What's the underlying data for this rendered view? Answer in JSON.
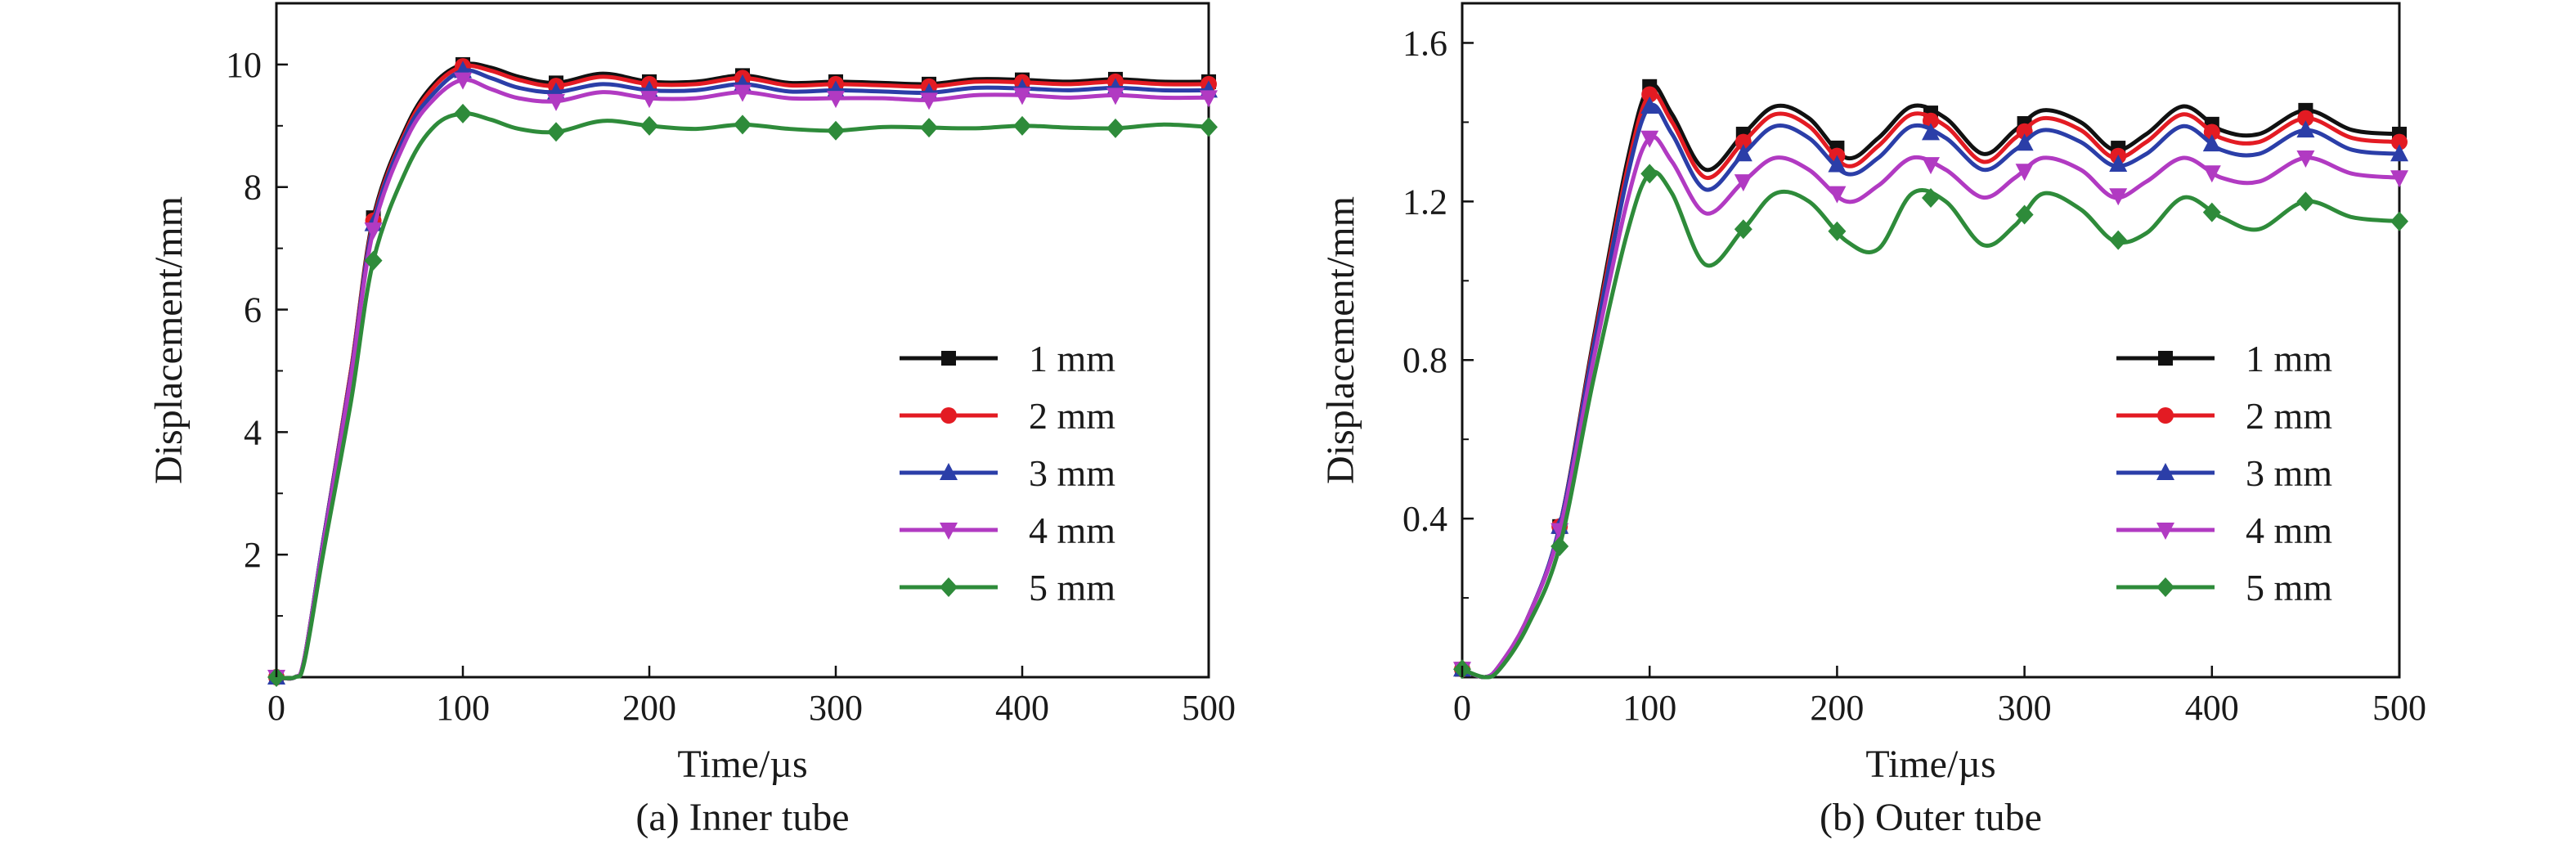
{
  "chart_data": [
    {
      "type": "line",
      "caption": "(a) Inner tube",
      "xlabel": "Time/µs",
      "ylabel": "Displacement/mm",
      "xlim": [
        0,
        500
      ],
      "ylim": [
        0,
        11
      ],
      "xticks": [
        0,
        100,
        200,
        300,
        400,
        500
      ],
      "xtick_labels": [
        "0",
        "100",
        "200",
        "300",
        "400",
        "500"
      ],
      "yticks": [
        2,
        4,
        6,
        8,
        10
      ],
      "ytick_labels": [
        "2",
        "4",
        "6",
        "8",
        "10"
      ],
      "grid": false,
      "legend_position": "lower-right",
      "series": [
        {
          "name": "1 mm",
          "color": "#111111",
          "marker": "square",
          "x": [
            0,
            10,
            15,
            25,
            40,
            52,
            70,
            85,
            100,
            115,
            130,
            150,
            175,
            200,
            225,
            250,
            275,
            300,
            325,
            350,
            375,
            400,
            425,
            450,
            475,
            500
          ],
          "y": [
            0,
            0,
            0.3,
            2.2,
            5.0,
            7.5,
            9.0,
            9.7,
            10.0,
            9.95,
            9.8,
            9.7,
            9.85,
            9.72,
            9.72,
            9.82,
            9.7,
            9.72,
            9.7,
            9.68,
            9.76,
            9.75,
            9.72,
            9.76,
            9.72,
            9.72
          ],
          "markers_x": [
            0,
            52,
            100,
            150,
            200,
            250,
            300,
            350,
            400,
            450,
            500
          ]
        },
        {
          "name": "2 mm",
          "color": "#e31b23",
          "marker": "circle",
          "x": [
            0,
            10,
            15,
            25,
            40,
            52,
            70,
            85,
            100,
            115,
            130,
            150,
            175,
            200,
            225,
            250,
            275,
            300,
            325,
            350,
            375,
            400,
            425,
            450,
            475,
            500
          ],
          "y": [
            0,
            0,
            0.3,
            2.2,
            5.0,
            7.45,
            8.95,
            9.65,
            9.97,
            9.9,
            9.75,
            9.65,
            9.8,
            9.68,
            9.68,
            9.78,
            9.66,
            9.68,
            9.66,
            9.64,
            9.72,
            9.71,
            9.68,
            9.72,
            9.68,
            9.68
          ],
          "markers_x": [
            0,
            52,
            100,
            150,
            200,
            250,
            300,
            350,
            400,
            450,
            500
          ]
        },
        {
          "name": "3 mm",
          "color": "#2b3ea8",
          "marker": "triangle-up",
          "x": [
            0,
            10,
            15,
            25,
            40,
            52,
            70,
            85,
            100,
            115,
            130,
            150,
            175,
            200,
            225,
            250,
            275,
            300,
            325,
            350,
            375,
            400,
            425,
            450,
            475,
            500
          ],
          "y": [
            0,
            0,
            0.3,
            2.2,
            4.95,
            7.4,
            8.9,
            9.55,
            9.9,
            9.78,
            9.62,
            9.55,
            9.68,
            9.58,
            9.58,
            9.68,
            9.56,
            9.58,
            9.56,
            9.54,
            9.62,
            9.61,
            9.58,
            9.62,
            9.58,
            9.58
          ],
          "markers_x": [
            0,
            52,
            100,
            150,
            200,
            250,
            300,
            350,
            400,
            450,
            500
          ]
        },
        {
          "name": "4 mm",
          "color": "#b13ac2",
          "marker": "triangle-down",
          "x": [
            0,
            10,
            15,
            25,
            40,
            52,
            70,
            85,
            100,
            115,
            130,
            150,
            175,
            200,
            225,
            250,
            275,
            300,
            325,
            350,
            375,
            400,
            425,
            450,
            475,
            500
          ],
          "y": [
            0,
            0,
            0.3,
            2.15,
            4.9,
            7.3,
            8.8,
            9.45,
            9.75,
            9.6,
            9.45,
            9.4,
            9.55,
            9.45,
            9.45,
            9.55,
            9.45,
            9.45,
            9.45,
            9.42,
            9.5,
            9.5,
            9.46,
            9.5,
            9.46,
            9.46
          ],
          "markers_x": [
            0,
            52,
            100,
            150,
            200,
            250,
            300,
            350,
            400,
            450,
            500
          ]
        },
        {
          "name": "5 mm",
          "color": "#2e8b3a",
          "marker": "diamond",
          "x": [
            0,
            10,
            15,
            25,
            40,
            52,
            70,
            85,
            100,
            115,
            130,
            150,
            175,
            200,
            225,
            250,
            275,
            300,
            325,
            350,
            375,
            400,
            425,
            450,
            475,
            500
          ],
          "y": [
            0,
            0,
            0.25,
            2.0,
            4.5,
            6.8,
            8.3,
            9.0,
            9.2,
            9.1,
            8.95,
            8.9,
            9.08,
            9.0,
            8.95,
            9.02,
            8.95,
            8.92,
            8.98,
            8.97,
            8.96,
            9.0,
            8.97,
            8.96,
            9.02,
            8.98
          ],
          "markers_x": [
            0,
            52,
            100,
            150,
            200,
            250,
            300,
            350,
            400,
            450,
            500
          ]
        }
      ]
    },
    {
      "type": "line",
      "caption": "(b) Outer tube",
      "xlabel": "Time/µs",
      "ylabel": "Displacement/mm",
      "xlim": [
        0,
        500
      ],
      "ylim": [
        0,
        1.7
      ],
      "xticks": [
        0,
        100,
        200,
        300,
        400,
        500
      ],
      "xtick_labels": [
        "0",
        "100",
        "200",
        "300",
        "400",
        "500"
      ],
      "yticks": [
        0.4,
        0.8,
        1.2,
        1.6
      ],
      "ytick_labels": [
        "0.4",
        "0.8",
        "1.2",
        "1.6"
      ],
      "grid": false,
      "legend_position": "lower-right",
      "series": [
        {
          "name": "1 mm",
          "color": "#111111",
          "marker": "square",
          "x": [
            0,
            12,
            20,
            35,
            52,
            70,
            88,
            100,
            112,
            130,
            150,
            167,
            185,
            205,
            222,
            240,
            258,
            278,
            295,
            310,
            330,
            348,
            365,
            385,
            405,
            425,
            450,
            475,
            500
          ],
          "y": [
            0.02,
            0.0,
            0.03,
            0.15,
            0.38,
            0.85,
            1.3,
            1.49,
            1.42,
            1.28,
            1.37,
            1.44,
            1.41,
            1.31,
            1.36,
            1.44,
            1.41,
            1.32,
            1.38,
            1.43,
            1.4,
            1.33,
            1.37,
            1.44,
            1.38,
            1.37,
            1.43,
            1.38,
            1.37
          ],
          "markers_x": [
            0,
            52,
            100,
            150,
            200,
            250,
            300,
            350,
            400,
            450,
            500
          ]
        },
        {
          "name": "2 mm",
          "color": "#e31b23",
          "marker": "circle",
          "x": [
            0,
            12,
            20,
            35,
            52,
            70,
            88,
            100,
            112,
            130,
            150,
            167,
            185,
            205,
            222,
            240,
            258,
            278,
            295,
            310,
            330,
            348,
            365,
            385,
            405,
            425,
            450,
            475,
            500
          ],
          "y": [
            0.02,
            0.0,
            0.03,
            0.15,
            0.38,
            0.84,
            1.28,
            1.47,
            1.4,
            1.26,
            1.35,
            1.42,
            1.39,
            1.29,
            1.34,
            1.42,
            1.39,
            1.3,
            1.36,
            1.41,
            1.38,
            1.31,
            1.35,
            1.42,
            1.36,
            1.35,
            1.41,
            1.36,
            1.35
          ],
          "markers_x": [
            0,
            52,
            100,
            150,
            200,
            250,
            300,
            350,
            400,
            450,
            500
          ]
        },
        {
          "name": "3 mm",
          "color": "#2b3ea8",
          "marker": "triangle-up",
          "x": [
            0,
            12,
            20,
            35,
            52,
            70,
            88,
            100,
            112,
            130,
            150,
            167,
            185,
            205,
            222,
            240,
            258,
            278,
            295,
            310,
            330,
            348,
            365,
            385,
            405,
            425,
            450,
            475,
            500
          ],
          "y": [
            0.02,
            0.0,
            0.03,
            0.15,
            0.38,
            0.83,
            1.26,
            1.44,
            1.37,
            1.23,
            1.32,
            1.39,
            1.36,
            1.27,
            1.31,
            1.39,
            1.36,
            1.28,
            1.33,
            1.38,
            1.35,
            1.29,
            1.32,
            1.39,
            1.33,
            1.32,
            1.38,
            1.33,
            1.32
          ],
          "markers_x": [
            0,
            52,
            100,
            150,
            200,
            250,
            300,
            350,
            400,
            450,
            500
          ]
        },
        {
          "name": "4 mm",
          "color": "#b13ac2",
          "marker": "triangle-down",
          "x": [
            0,
            12,
            20,
            35,
            52,
            70,
            88,
            100,
            112,
            130,
            150,
            167,
            185,
            205,
            222,
            240,
            258,
            278,
            295,
            310,
            330,
            348,
            365,
            385,
            405,
            425,
            450,
            475,
            500
          ],
          "y": [
            0.02,
            0.0,
            0.03,
            0.15,
            0.37,
            0.8,
            1.2,
            1.36,
            1.3,
            1.17,
            1.25,
            1.31,
            1.28,
            1.2,
            1.24,
            1.31,
            1.28,
            1.21,
            1.26,
            1.31,
            1.28,
            1.21,
            1.25,
            1.31,
            1.26,
            1.25,
            1.31,
            1.27,
            1.26
          ],
          "markers_x": [
            0,
            52,
            100,
            150,
            200,
            250,
            300,
            350,
            400,
            450,
            500
          ]
        },
        {
          "name": "5 mm",
          "color": "#2e8b3a",
          "marker": "diamond",
          "x": [
            0,
            12,
            20,
            35,
            52,
            70,
            88,
            100,
            112,
            130,
            150,
            167,
            185,
            205,
            222,
            240,
            258,
            278,
            295,
            310,
            330,
            348,
            365,
            385,
            405,
            425,
            450,
            475,
            500
          ],
          "y": [
            0.02,
            0.0,
            0.02,
            0.13,
            0.33,
            0.75,
            1.12,
            1.27,
            1.22,
            1.04,
            1.13,
            1.22,
            1.2,
            1.1,
            1.08,
            1.22,
            1.2,
            1.09,
            1.14,
            1.22,
            1.18,
            1.1,
            1.12,
            1.21,
            1.16,
            1.13,
            1.2,
            1.16,
            1.15
          ],
          "markers_x": [
            0,
            52,
            100,
            150,
            200,
            250,
            300,
            350,
            400,
            450,
            500
          ]
        }
      ]
    }
  ]
}
